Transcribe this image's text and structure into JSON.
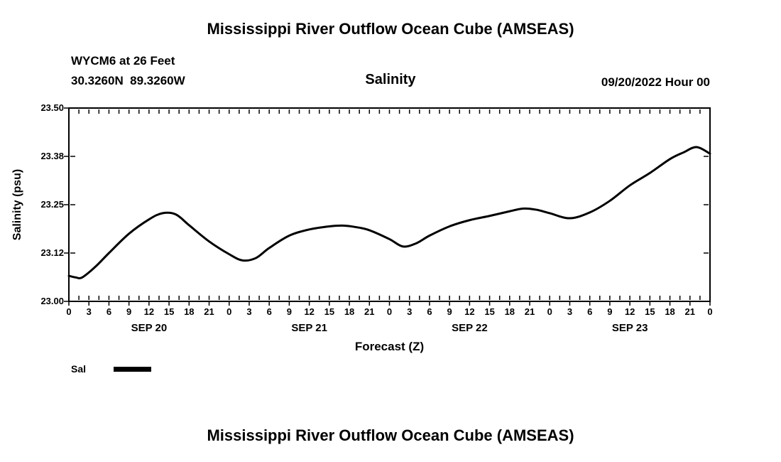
{
  "titles": {
    "top": "Mississippi River Outflow Ocean Cube (AMSEAS)",
    "bottom": "Mississippi River Outflow Ocean Cube (AMSEAS)"
  },
  "header": {
    "station": "WYCM6 at 26 Feet",
    "coords": "30.3260N  89.3260W",
    "variable": "Salinity",
    "run": "09/20/2022 Hour 00"
  },
  "legend": {
    "label": "Sal",
    "color": "#000000"
  },
  "chart_data": {
    "type": "line",
    "title": "Salinity",
    "xlabel": "Forecast (Z)",
    "ylabel": "Salinity (psu)",
    "x_range_hours": [
      0,
      96
    ],
    "ylim": [
      23.0,
      23.5
    ],
    "yticks": [
      23.0,
      23.125,
      23.25,
      23.375,
      23.5
    ],
    "ytick_labels": [
      "23.00",
      "23.12",
      "23.25",
      "23.38",
      "23.50"
    ],
    "xticks_hours": [
      0,
      3,
      6,
      9,
      12,
      15,
      18,
      21,
      24,
      27,
      30,
      33,
      36,
      39,
      42,
      45,
      48,
      51,
      54,
      57,
      60,
      63,
      66,
      69,
      72,
      75,
      78,
      81,
      84,
      87,
      90,
      93,
      96
    ],
    "xtick_labels": [
      "0",
      "3",
      "6",
      "9",
      "12",
      "15",
      "18",
      "21",
      "0",
      "3",
      "6",
      "9",
      "12",
      "15",
      "18",
      "21",
      "0",
      "3",
      "6",
      "9",
      "12",
      "15",
      "18",
      "21",
      "0",
      "3",
      "6",
      "9",
      "12",
      "15",
      "18",
      "21",
      "0"
    ],
    "day_labels": [
      "SEP 20",
      "SEP 21",
      "SEP 22",
      "SEP 23"
    ],
    "day_label_hours": [
      12,
      36,
      60,
      84
    ],
    "grid": "inward dashed tick marks on all four sides, no interior gridlines",
    "legend_position": "bottom-left",
    "series": [
      {
        "name": "Sal",
        "color": "#000000",
        "x": [
          0,
          1,
          2,
          4,
          6,
          9,
          12,
          14,
          16,
          18,
          21,
          24,
          26,
          28,
          30,
          33,
          36,
          39,
          41,
          43,
          45,
          48,
          50,
          52,
          54,
          57,
          60,
          63,
          66,
          68,
          70,
          72,
          75,
          78,
          81,
          84,
          87,
          90,
          92,
          94,
          96
        ],
        "values": [
          23.066,
          23.062,
          23.062,
          23.09,
          23.125,
          23.175,
          23.212,
          23.228,
          23.225,
          23.197,
          23.155,
          23.122,
          23.106,
          23.112,
          23.138,
          23.17,
          23.186,
          23.194,
          23.196,
          23.192,
          23.184,
          23.161,
          23.142,
          23.15,
          23.17,
          23.194,
          23.21,
          23.221,
          23.233,
          23.24,
          23.237,
          23.228,
          23.215,
          23.23,
          23.26,
          23.3,
          23.332,
          23.368,
          23.385,
          23.399,
          23.382
        ]
      }
    ]
  }
}
